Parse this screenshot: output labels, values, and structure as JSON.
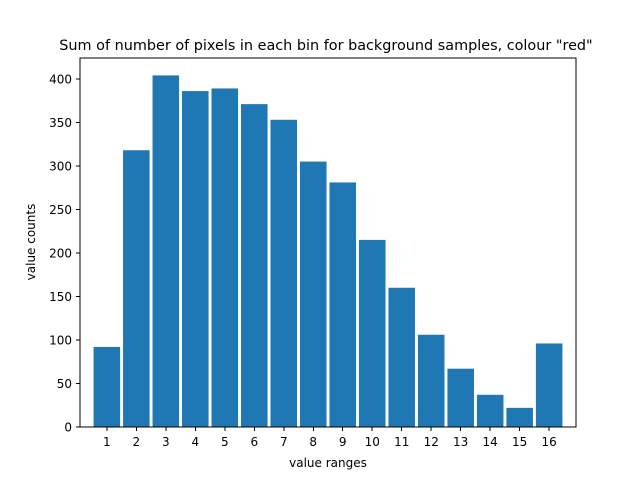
{
  "chart_data": {
    "type": "bar",
    "title": "Sum of number of pixels in each bin for background samples, colour \"red\"",
    "xlabel": "value ranges",
    "ylabel": "value counts",
    "categories": [
      "1",
      "2",
      "3",
      "4",
      "5",
      "6",
      "7",
      "8",
      "9",
      "10",
      "11",
      "12",
      "13",
      "14",
      "15",
      "16"
    ],
    "values": [
      92,
      318,
      404,
      386,
      389,
      371,
      353,
      305,
      281,
      215,
      160,
      106,
      67,
      37,
      22,
      96
    ],
    "ylim": [
      0,
      424
    ],
    "yticks": [
      0,
      50,
      100,
      150,
      200,
      250,
      300,
      350,
      400
    ],
    "bar_color": "#1f77b4",
    "grid": false,
    "legend": "none"
  }
}
